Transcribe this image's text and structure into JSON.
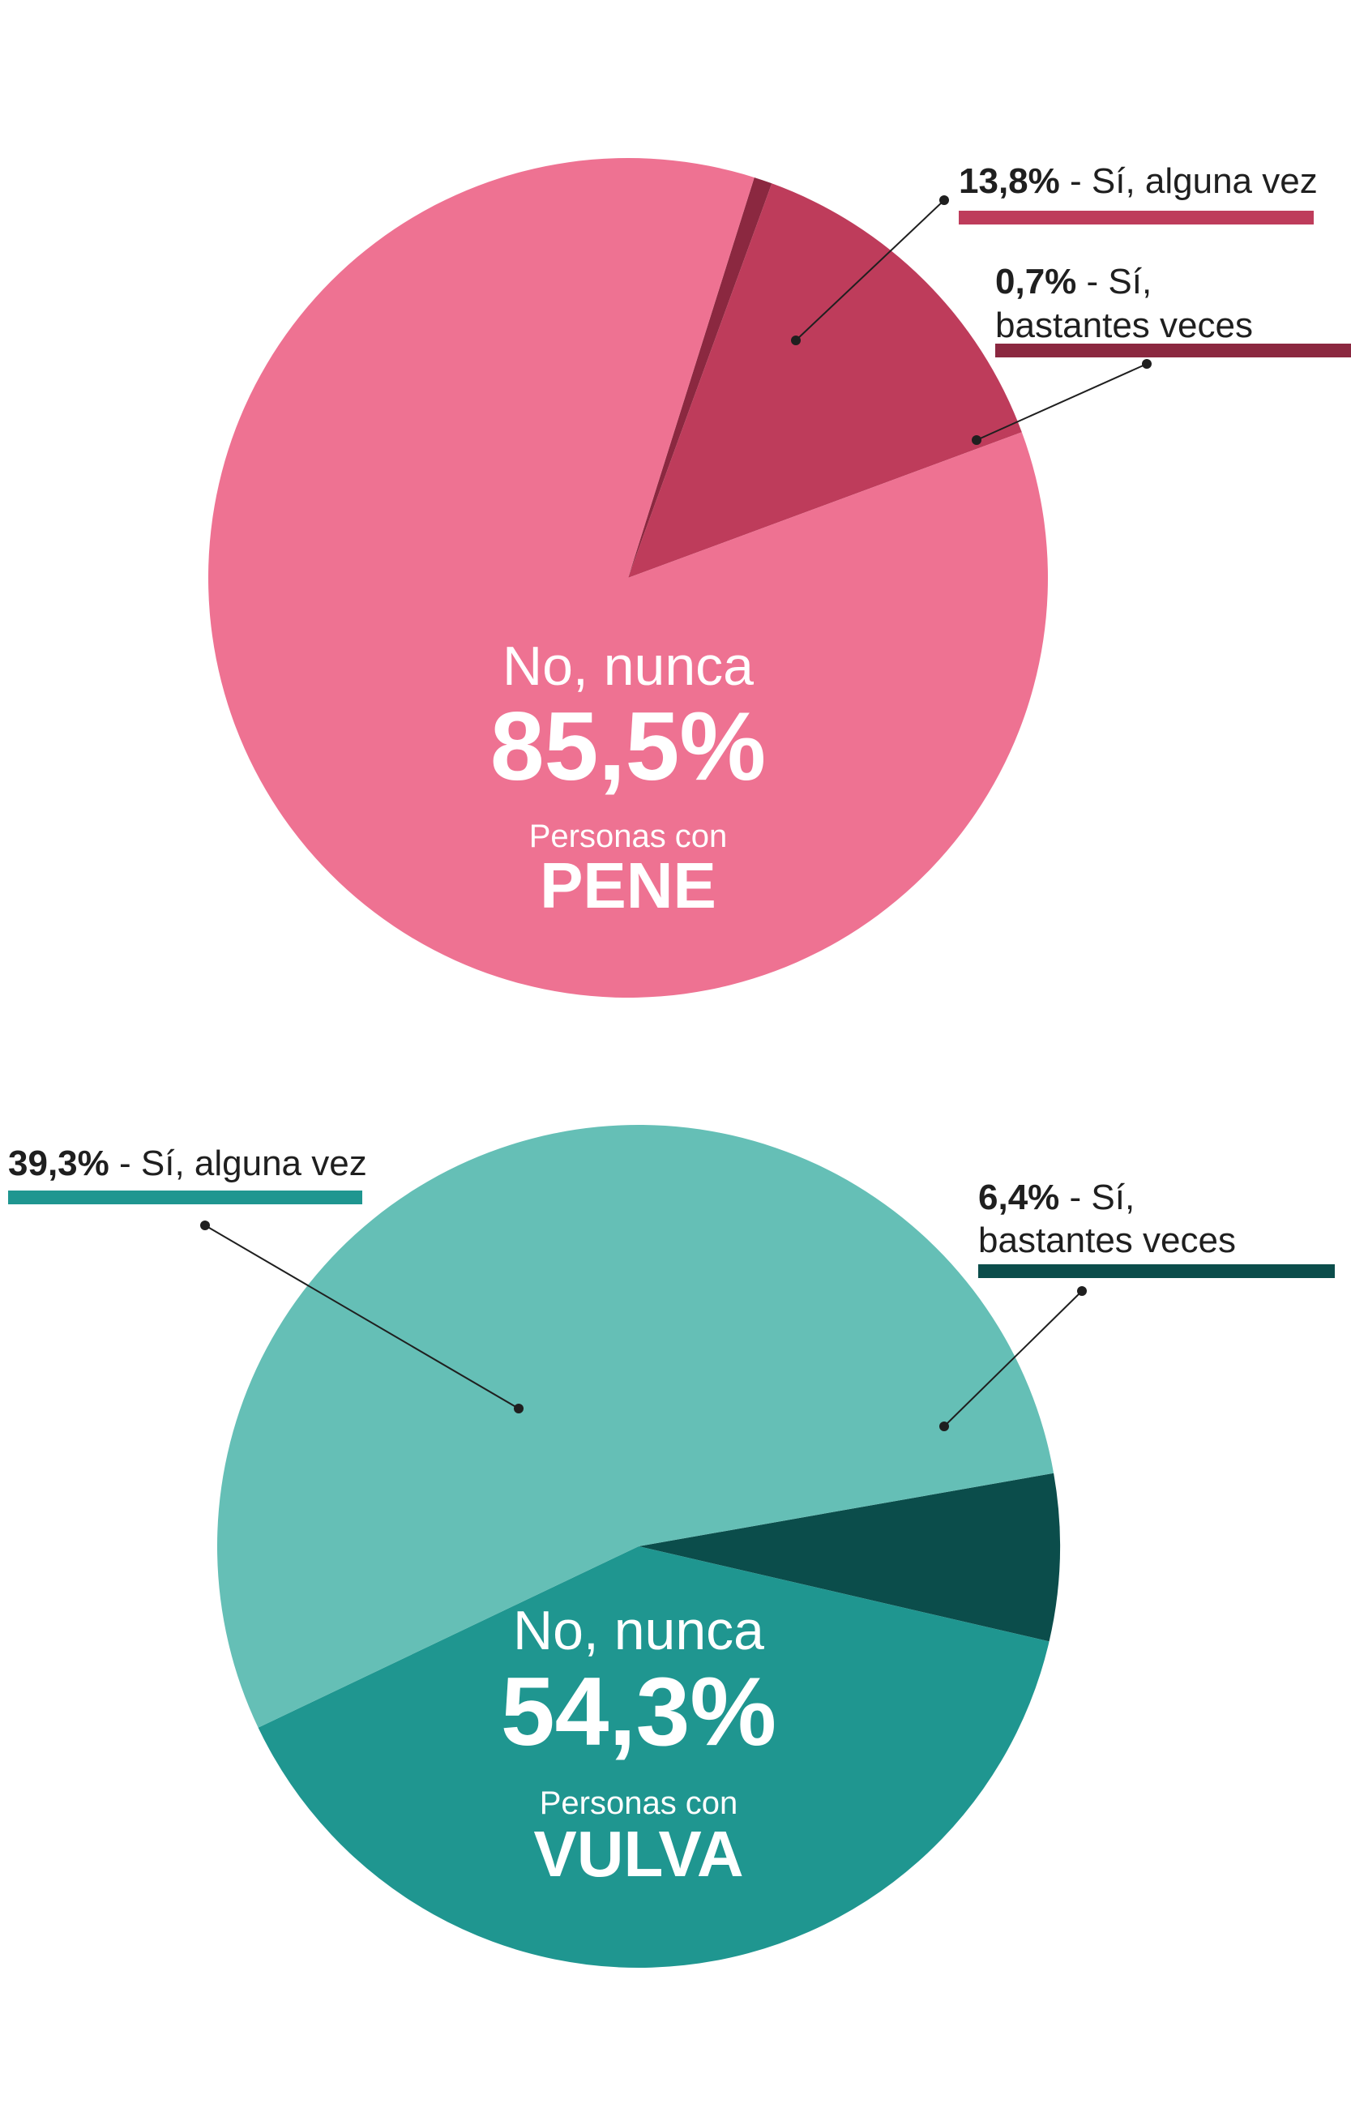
{
  "chart_data": [
    {
      "type": "pie",
      "title": "",
      "colors": [
        "#EE7292",
        "#BE3C5B",
        "#8B2840"
      ],
      "slices": [
        {
          "name": "No, nunca",
          "value": 85.5,
          "value_text": "85,5%",
          "color": "#EE7292"
        },
        {
          "name": "Sí, alguna vez",
          "value": 13.8,
          "value_text": "13,8%",
          "color": "#BE3C5B"
        },
        {
          "name": "Sí, bastantes veces",
          "value": 0.7,
          "value_text": "0,7%",
          "color": "#8B2840"
        }
      ],
      "center_label": {
        "category": "No, nunca",
        "value": "85,5%",
        "group_prefix": "Personas con",
        "group": "PENE"
      },
      "callouts": [
        {
          "value": "13,8%",
          "text": " - Sí, alguna vez",
          "text2": ""
        },
        {
          "value": "0,7%",
          "text": " - Sí,",
          "text2": "bastantes veces"
        }
      ]
    },
    {
      "type": "pie",
      "title": "",
      "colors": [
        "#65BFB6",
        "#1F9690",
        "#0B4D4B"
      ],
      "slices": [
        {
          "name": "No, nunca",
          "value": 54.3,
          "value_text": "54,3%",
          "color": "#65BFB6"
        },
        {
          "name": "Sí, alguna vez",
          "value": 39.3,
          "value_text": "39,3%",
          "color": "#1F9690"
        },
        {
          "name": "Sí, bastantes veces",
          "value": 6.4,
          "value_text": "6,4%",
          "color": "#0B4D4B"
        }
      ],
      "center_label": {
        "category": "No, nunca",
        "value": "54,3%",
        "group_prefix": "Personas con",
        "group": "VULVA"
      },
      "callouts": [
        {
          "value": "39,3%",
          "text": " - Sí, alguna vez",
          "text2": ""
        },
        {
          "value": "6,4%",
          "text": " - Sí,",
          "text2": "bastantes veces"
        }
      ]
    }
  ]
}
